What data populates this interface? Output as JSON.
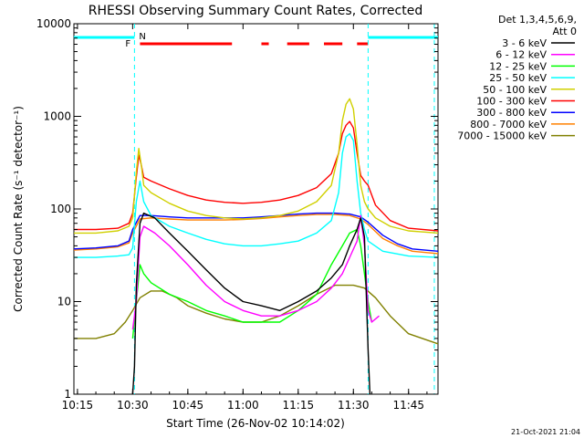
{
  "chart_data": {
    "type": "line",
    "title": "RHESSI Observing Summary Count Rates, Corrected",
    "xlabel": "Start Time (26-Nov-02 10:14:02)",
    "ylabel": "Corrected Count Rate (s⁻¹ detector⁻¹)",
    "x_ticks": [
      "10:15",
      "10:30",
      "10:45",
      "11:00",
      "11:15",
      "11:30",
      "11:45"
    ],
    "y_ticks": [
      "1",
      "10",
      "100",
      "1000",
      "10000"
    ],
    "xlim": [
      "10:14:02",
      "11:53:00"
    ],
    "ylim": [
      1,
      10000
    ],
    "y_scale": "log",
    "legend_header": [
      "Det 1,3,4,5,6,9,",
      "Att 0"
    ],
    "legend_position": "right",
    "footer_date": "21-Oct-2021 21:04",
    "flags": {
      "F_label": "F",
      "N_label": "N",
      "night_segments": [
        [
          "10:14",
          "10:30:30"
        ],
        [
          "11:34",
          "11:53"
        ]
      ],
      "flare_segments": [
        [
          "10:32",
          "10:57"
        ],
        [
          "11:05",
          "11:07"
        ],
        [
          "11:12",
          "11:18"
        ],
        [
          "11:22",
          "11:27"
        ],
        [
          "11:31",
          "11:34"
        ]
      ],
      "dashed_lines": [
        "10:30:30",
        "11:34",
        "11:52"
      ]
    },
    "series": [
      {
        "name": "3 - 6 keV",
        "color": "#000000",
        "points": [
          [
            "10:30:00",
            1.0
          ],
          [
            "10:30:30",
            2
          ],
          [
            "10:31:00",
            15
          ],
          [
            "10:32:00",
            70
          ],
          [
            "10:33:00",
            90
          ],
          [
            "10:36:00",
            80
          ],
          [
            "10:40:00",
            55
          ],
          [
            "10:45:00",
            35
          ],
          [
            "10:50:00",
            22
          ],
          [
            "10:55:00",
            14
          ],
          [
            "11:00:00",
            10
          ],
          [
            "11:05:00",
            9
          ],
          [
            "11:10:00",
            8
          ],
          [
            "11:15:00",
            10
          ],
          [
            "11:20:00",
            13
          ],
          [
            "11:24:00",
            18
          ],
          [
            "11:27:00",
            25
          ],
          [
            "11:29:00",
            40
          ],
          [
            "11:31:00",
            60
          ],
          [
            "11:32:00",
            80
          ],
          [
            "11:33:00",
            50
          ],
          [
            "11:34:00",
            3
          ],
          [
            "11:34:30",
            1.0
          ]
        ]
      },
      {
        "name": "6 - 12 keV",
        "color": "#ff00ff",
        "points": [
          [
            "10:30:00",
            5
          ],
          [
            "10:31:00",
            10
          ],
          [
            "10:32:00",
            50
          ],
          [
            "10:33:00",
            65
          ],
          [
            "10:36:00",
            55
          ],
          [
            "10:40:00",
            40
          ],
          [
            "10:45:00",
            25
          ],
          [
            "10:50:00",
            15
          ],
          [
            "10:55:00",
            10
          ],
          [
            "11:00:00",
            8
          ],
          [
            "11:05:00",
            7
          ],
          [
            "11:10:00",
            7
          ],
          [
            "11:15:00",
            8
          ],
          [
            "11:20:00",
            10
          ],
          [
            "11:24:00",
            14
          ],
          [
            "11:27:00",
            20
          ],
          [
            "11:29:00",
            30
          ],
          [
            "11:31:00",
            45
          ],
          [
            "11:32:00",
            85
          ],
          [
            "11:33:00",
            40
          ],
          [
            "11:34:00",
            8
          ],
          [
            "11:35:00",
            6
          ],
          [
            "11:37:00",
            7
          ]
        ]
      },
      {
        "name": "12 - 25 keV",
        "color": "#00ff00",
        "points": [
          [
            "10:30:00",
            4
          ],
          [
            "10:31:00",
            10
          ],
          [
            "10:32:00",
            25
          ],
          [
            "10:33:00",
            20
          ],
          [
            "10:35:00",
            16
          ],
          [
            "10:40:00",
            12
          ],
          [
            "10:45:00",
            10
          ],
          [
            "10:50:00",
            8
          ],
          [
            "10:55:00",
            7
          ],
          [
            "11:00:00",
            6
          ],
          [
            "11:05:00",
            6
          ],
          [
            "11:10:00",
            6
          ],
          [
            "11:15:00",
            8
          ],
          [
            "11:20:00",
            12
          ],
          [
            "11:24:00",
            25
          ],
          [
            "11:27:00",
            40
          ],
          [
            "11:29:00",
            55
          ],
          [
            "11:31:00",
            60
          ],
          [
            "11:32:00",
            40
          ],
          [
            "11:33:00",
            20
          ],
          [
            "11:34:00",
            10
          ],
          [
            "11:35:00",
            6
          ]
        ]
      },
      {
        "name": "25 - 50 keV",
        "color": "#00ffff",
        "points": [
          [
            "10:14:02",
            30
          ],
          [
            "10:20:00",
            30
          ],
          [
            "10:26:00",
            31
          ],
          [
            "10:29:00",
            32
          ],
          [
            "10:30:00",
            38
          ],
          [
            "10:31:00",
            120
          ],
          [
            "10:32:00",
            200
          ],
          [
            "10:33:00",
            120
          ],
          [
            "10:35:00",
            85
          ],
          [
            "10:40:00",
            65
          ],
          [
            "10:45:00",
            55
          ],
          [
            "10:50:00",
            47
          ],
          [
            "10:55:00",
            42
          ],
          [
            "11:00:00",
            40
          ],
          [
            "11:05:00",
            40
          ],
          [
            "11:10:00",
            42
          ],
          [
            "11:15:00",
            45
          ],
          [
            "11:20:00",
            55
          ],
          [
            "11:24:00",
            75
          ],
          [
            "11:26:00",
            150
          ],
          [
            "11:27:00",
            400
          ],
          [
            "11:28:00",
            600
          ],
          [
            "11:29:00",
            650
          ],
          [
            "11:30:00",
            550
          ],
          [
            "11:31:00",
            200
          ],
          [
            "11:32:00",
            90
          ],
          [
            "11:33:00",
            60
          ],
          [
            "11:34:00",
            45
          ],
          [
            "11:38:00",
            35
          ],
          [
            "11:45:00",
            31
          ],
          [
            "11:53:00",
            30
          ]
        ]
      },
      {
        "name": "50 - 100 keV",
        "color": "#d0d000",
        "points": [
          [
            "10:14:02",
            55
          ],
          [
            "10:20:00",
            55
          ],
          [
            "10:26:00",
            58
          ],
          [
            "10:29:00",
            65
          ],
          [
            "10:30:00",
            80
          ],
          [
            "10:31:00",
            250
          ],
          [
            "10:31:40",
            450
          ],
          [
            "10:32:20",
            300
          ],
          [
            "10:33:00",
            180
          ],
          [
            "10:35:00",
            150
          ],
          [
            "10:40:00",
            115
          ],
          [
            "10:45:00",
            95
          ],
          [
            "10:50:00",
            85
          ],
          [
            "10:55:00",
            80
          ],
          [
            "11:00:00",
            78
          ],
          [
            "11:05:00",
            80
          ],
          [
            "11:10:00",
            85
          ],
          [
            "11:15:00",
            95
          ],
          [
            "11:20:00",
            120
          ],
          [
            "11:24:00",
            180
          ],
          [
            "11:26:00",
            400
          ],
          [
            "11:27:00",
            900
          ],
          [
            "11:28:00",
            1350
          ],
          [
            "11:29:00",
            1550
          ],
          [
            "11:30:00",
            1200
          ],
          [
            "11:31:00",
            500
          ],
          [
            "11:32:00",
            180
          ],
          [
            "11:33:00",
            120
          ],
          [
            "11:34:00",
            100
          ],
          [
            "11:36:00",
            80
          ],
          [
            "11:40:00",
            65
          ],
          [
            "11:45:00",
            58
          ],
          [
            "11:53:00",
            55
          ]
        ]
      },
      {
        "name": "100 - 300 keV",
        "color": "#ff0000",
        "points": [
          [
            "10:14:02",
            60
          ],
          [
            "10:20:00",
            60
          ],
          [
            "10:26:00",
            62
          ],
          [
            "10:29:00",
            70
          ],
          [
            "10:30:00",
            90
          ],
          [
            "10:31:00",
            220
          ],
          [
            "10:31:40",
            380
          ],
          [
            "10:32:20",
            300
          ],
          [
            "10:33:00",
            220
          ],
          [
            "10:35:00",
            200
          ],
          [
            "10:40:00",
            165
          ],
          [
            "10:45:00",
            140
          ],
          [
            "10:50:00",
            125
          ],
          [
            "10:55:00",
            118
          ],
          [
            "11:00:00",
            115
          ],
          [
            "11:05:00",
            118
          ],
          [
            "11:10:00",
            125
          ],
          [
            "11:15:00",
            140
          ],
          [
            "11:20:00",
            170
          ],
          [
            "11:24:00",
            240
          ],
          [
            "11:26:00",
            400
          ],
          [
            "11:27:00",
            650
          ],
          [
            "11:28:00",
            800
          ],
          [
            "11:29:00",
            880
          ],
          [
            "11:30:00",
            750
          ],
          [
            "11:31:00",
            400
          ],
          [
            "11:32:00",
            230
          ],
          [
            "11:33:00",
            200
          ],
          [
            "11:34:00",
            180
          ],
          [
            "11:36:00",
            110
          ],
          [
            "11:40:00",
            75
          ],
          [
            "11:45:00",
            62
          ],
          [
            "11:53:00",
            58
          ]
        ]
      },
      {
        "name": "300 - 800 keV",
        "color": "#0000ff",
        "points": [
          [
            "10:14:02",
            37
          ],
          [
            "10:20:00",
            38
          ],
          [
            "10:26:00",
            40
          ],
          [
            "10:29:00",
            45
          ],
          [
            "10:30:00",
            60
          ],
          [
            "10:32:00",
            85
          ],
          [
            "10:35:00",
            85
          ],
          [
            "10:40:00",
            82
          ],
          [
            "10:45:00",
            80
          ],
          [
            "10:50:00",
            80
          ],
          [
            "10:55:00",
            80
          ],
          [
            "11:00:00",
            80
          ],
          [
            "11:05:00",
            82
          ],
          [
            "11:10:00",
            85
          ],
          [
            "11:15:00",
            88
          ],
          [
            "11:20:00",
            90
          ],
          [
            "11:25:00",
            90
          ],
          [
            "11:29:00",
            88
          ],
          [
            "11:32:00",
            82
          ],
          [
            "11:34:00",
            72
          ],
          [
            "11:38:00",
            52
          ],
          [
            "11:42:00",
            42
          ],
          [
            "11:46:00",
            37
          ],
          [
            "11:53:00",
            35
          ]
        ]
      },
      {
        "name": "800 - 7000 keV",
        "color": "#ff8000",
        "points": [
          [
            "10:14:02",
            36
          ],
          [
            "10:20:00",
            37
          ],
          [
            "10:26:00",
            39
          ],
          [
            "10:29:00",
            43
          ],
          [
            "10:30:00",
            55
          ],
          [
            "10:32:00",
            78
          ],
          [
            "10:35:00",
            80
          ],
          [
            "10:40:00",
            78
          ],
          [
            "10:45:00",
            76
          ],
          [
            "10:50:00",
            76
          ],
          [
            "10:55:00",
            76
          ],
          [
            "11:00:00",
            77
          ],
          [
            "11:05:00",
            79
          ],
          [
            "11:10:00",
            82
          ],
          [
            "11:15:00",
            85
          ],
          [
            "11:20:00",
            87
          ],
          [
            "11:25:00",
            87
          ],
          [
            "11:29:00",
            85
          ],
          [
            "11:32:00",
            78
          ],
          [
            "11:34:00",
            68
          ],
          [
            "11:38:00",
            48
          ],
          [
            "11:42:00",
            40
          ],
          [
            "11:46:00",
            35
          ],
          [
            "11:53:00",
            33
          ]
        ]
      },
      {
        "name": "7000 - 15000 keV",
        "color": "#808000",
        "points": [
          [
            "10:14:02",
            4
          ],
          [
            "10:20:00",
            4
          ],
          [
            "10:25:00",
            4.5
          ],
          [
            "10:28:00",
            6
          ],
          [
            "10:30:00",
            8
          ],
          [
            "10:32:00",
            11
          ],
          [
            "10:35:00",
            13
          ],
          [
            "10:38:00",
            13
          ],
          [
            "10:42:00",
            11
          ],
          [
            "10:45:00",
            9
          ],
          [
            "10:50:00",
            7.5
          ],
          [
            "10:55:00",
            6.5
          ],
          [
            "11:00:00",
            6
          ],
          [
            "11:05:00",
            6
          ],
          [
            "11:10:00",
            7
          ],
          [
            "11:15:00",
            9
          ],
          [
            "11:20:00",
            12
          ],
          [
            "11:25:00",
            15
          ],
          [
            "11:30:00",
            15
          ],
          [
            "11:33:00",
            14
          ],
          [
            "11:36:00",
            11
          ],
          [
            "11:40:00",
            7
          ],
          [
            "11:45:00",
            4.5
          ],
          [
            "11:53:00",
            3.5
          ]
        ]
      }
    ]
  }
}
